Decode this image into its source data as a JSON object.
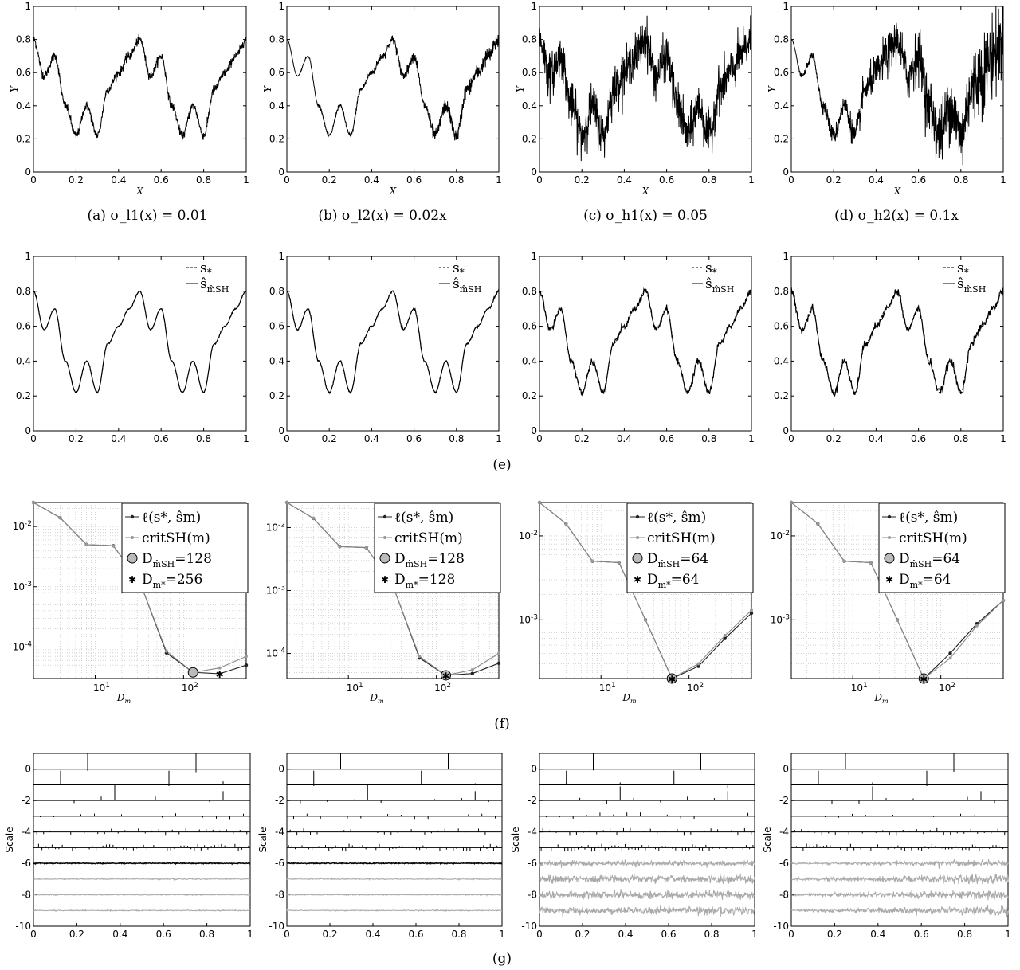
{
  "captions": {
    "a": "(a) σ_l1(x) = 0.01",
    "b": "(b) σ_l2(x) = 0.02x",
    "c": "(c) σ_h1(x) = 0.05",
    "d": "(d) σ_h2(x) = 0.1x",
    "e": "(e)",
    "f": "(f)",
    "g": "(g)"
  },
  "chart_data": [
    {
      "type": "line",
      "row": "a-d",
      "xlabel": "X",
      "ylabel": "Y",
      "xlim": [
        0,
        1
      ],
      "ylim": [
        0,
        1
      ],
      "xticks": [
        "0",
        "0.2",
        "0.4",
        "0.6",
        "0.8",
        "1"
      ],
      "yticks": [
        "0",
        "0.2",
        "0.4",
        "0.6",
        "0.8",
        "1"
      ],
      "series": [
        {
          "panel": "a",
          "noise": 0.01,
          "x": [
            0,
            0.05,
            0.1,
            0.15,
            0.2,
            0.25,
            0.3,
            0.35,
            0.4,
            0.45,
            0.5,
            0.55,
            0.6,
            0.65,
            0.7,
            0.75,
            0.8,
            0.85,
            0.9,
            0.95,
            1
          ],
          "y": [
            0.8,
            0.58,
            0.7,
            0.4,
            0.22,
            0.4,
            0.22,
            0.5,
            0.6,
            0.7,
            0.8,
            0.58,
            0.7,
            0.4,
            0.22,
            0.4,
            0.22,
            0.5,
            0.6,
            0.7,
            0.8
          ]
        },
        {
          "panel": "b",
          "noise": 0.02
        },
        {
          "panel": "c",
          "noise": 0.05
        },
        {
          "panel": "d",
          "noise": 0.1
        }
      ]
    },
    {
      "type": "line",
      "row": "e",
      "xlim": [
        0,
        1
      ],
      "ylim": [
        0,
        1
      ],
      "xticks": [
        "0",
        "0.2",
        "0.4",
        "0.6",
        "0.8",
        "1"
      ],
      "yticks": [
        "0",
        "0.2",
        "0.4",
        "0.6",
        "0.8",
        "1"
      ],
      "legend": [
        "s_*",
        "ŝ_m̂SH"
      ],
      "legend_position": "top-right"
    },
    {
      "type": "line",
      "row": "f",
      "xscale": "log",
      "yscale": "log",
      "xlabel": "D_m",
      "x": [
        2,
        4,
        8,
        16,
        32,
        64,
        128,
        256,
        512
      ],
      "legend": [
        "ℓ(s_*, ŝ_m)",
        "crit_SH(m)"
      ],
      "panels": [
        {
          "ylim": [
            3e-05,
            0.025
          ],
          "yticks": [
            "10^-2",
            "10^-3",
            "10^-4"
          ],
          "xticks": [
            "10^1",
            "10^2"
          ],
          "loss": [
            0.025,
            0.014,
            0.005,
            0.0048,
            0.0012,
            8e-05,
            3.8e-05,
            3.6e-05,
            5e-05
          ],
          "crit": [
            0.025,
            0.014,
            0.005,
            0.0048,
            0.0012,
            8.5e-05,
            3.8e-05,
            4.5e-05,
            7e-05
          ],
          "D_mhat_SH": "128",
          "D_mstar": "256"
        },
        {
          "ylim": [
            4e-05,
            0.025
          ],
          "yticks": [
            "10^-2",
            "10^-3",
            "10^-4"
          ],
          "xticks": [
            "10^1",
            "10^2"
          ],
          "loss": [
            0.025,
            0.014,
            0.005,
            0.0048,
            0.0012,
            8.5e-05,
            4.5e-05,
            4.8e-05,
            7e-05
          ],
          "crit": [
            0.025,
            0.014,
            0.005,
            0.0048,
            0.0012,
            9e-05,
            4.5e-05,
            5.5e-05,
            0.0001
          ],
          "D_mhat_SH": "128",
          "D_mstar": "128"
        },
        {
          "ylim": [
            0.0002,
            0.025
          ],
          "yticks": [
            "10^-2",
            "10^-3"
          ],
          "xticks": [
            "10^1",
            "10^2"
          ],
          "loss": [
            0.025,
            0.014,
            0.005,
            0.0048,
            0.001,
            0.0002,
            0.00028,
            0.0006,
            0.0012
          ],
          "crit": [
            0.025,
            0.014,
            0.005,
            0.0048,
            0.001,
            0.0002,
            0.0003,
            0.00065,
            0.0013
          ],
          "D_mhat_SH": "64",
          "D_mstar": "64"
        },
        {
          "ylim": [
            0.0002,
            0.025
          ],
          "yticks": [
            "10^-2",
            "10^-3"
          ],
          "xticks": [
            "10^1",
            "10^2"
          ],
          "loss": [
            0.025,
            0.014,
            0.005,
            0.0048,
            0.001,
            0.0002,
            0.0004,
            0.0009,
            0.0017
          ],
          "crit": [
            0.025,
            0.014,
            0.005,
            0.0048,
            0.001,
            0.0002,
            0.00035,
            0.00085,
            0.0017
          ],
          "D_mhat_SH": "64",
          "D_mstar": "64"
        }
      ]
    },
    {
      "type": "bar",
      "row": "g",
      "ylabel": "Scale",
      "xlim": [
        0,
        1
      ],
      "ylim": [
        -10,
        1
      ],
      "xticks": [
        "0",
        "0.2",
        "0.4",
        "0.6",
        "0.8",
        "1"
      ],
      "yticks": [
        "-10",
        "-8",
        "-6",
        "-4",
        "-2",
        "0"
      ],
      "levels": [
        0,
        -1,
        -2,
        -3,
        -4,
        -5,
        -6,
        -7,
        -8,
        -9
      ]
    }
  ],
  "legend_text": {
    "s_star": "s",
    "s_star_sub": "*",
    "s_hat": "ŝ",
    "s_hat_sub": "m̂SH",
    "loss": "ℓ(s*, ŝm)",
    "crit": "critSH(m)",
    "D_hat": "D",
    "D_hat_sub": "m̂SH",
    "D_star": "D",
    "D_star_sub": "m*"
  },
  "axis_labels": {
    "X": "X",
    "Y": "Y",
    "Dm": "D",
    "Dm_sub": "m",
    "scale": "Scale"
  }
}
